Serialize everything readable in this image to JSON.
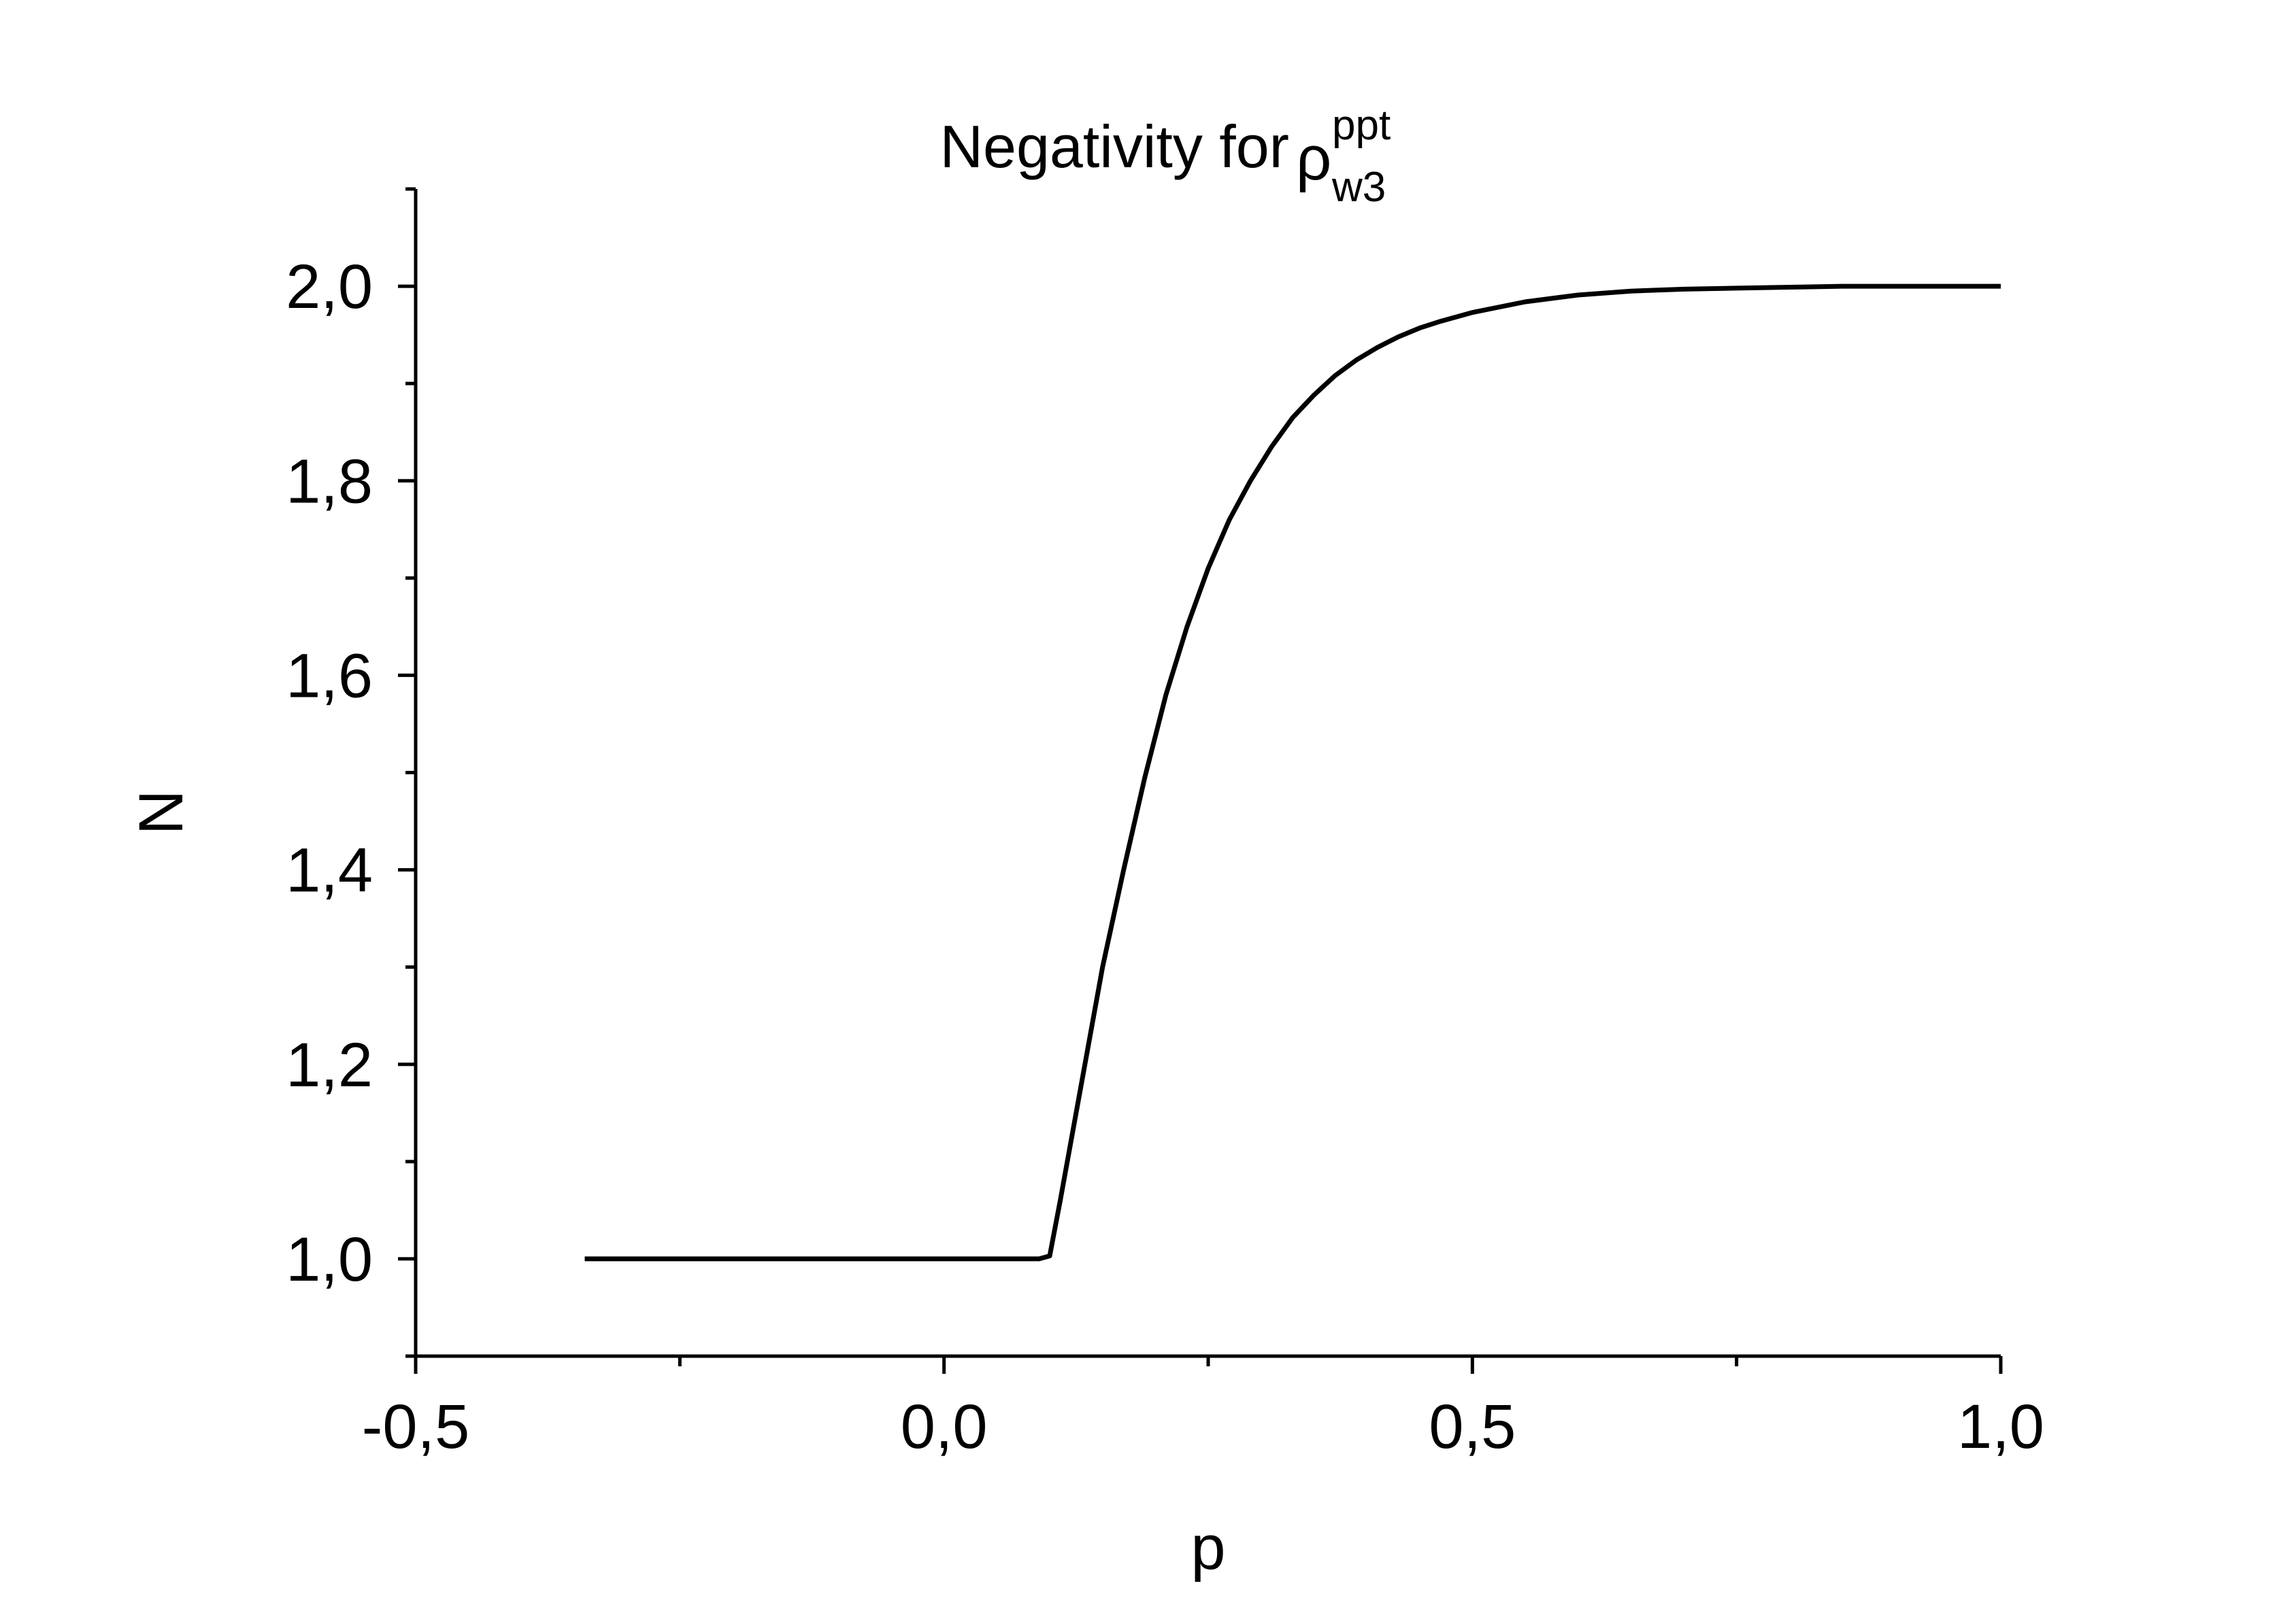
{
  "chart_data": {
    "type": "line",
    "title": {
      "text": "Negativity for ",
      "symbol": "ρ",
      "superscript": "ppt",
      "subscript": "w3"
    },
    "xlabel": "p",
    "ylabel": "N",
    "xlim": [
      -0.5,
      1.0
    ],
    "ylim": [
      0.9,
      2.1
    ],
    "x_ticks": [
      {
        "value": -0.5,
        "label": "-0,5"
      },
      {
        "value": 0.0,
        "label": "0,0"
      },
      {
        "value": 0.5,
        "label": "0,5"
      },
      {
        "value": 1.0,
        "label": "1,0"
      }
    ],
    "x_minor_ticks": [
      -0.25,
      0.25,
      0.75
    ],
    "y_ticks": [
      {
        "value": 1.0,
        "label": "1,0"
      },
      {
        "value": 1.2,
        "label": "1,2"
      },
      {
        "value": 1.4,
        "label": "1,4"
      },
      {
        "value": 1.6,
        "label": "1,6"
      },
      {
        "value": 1.8,
        "label": "1,8"
      },
      {
        "value": 2.0,
        "label": "2,0"
      }
    ],
    "y_minor_ticks": [
      0.9,
      1.1,
      1.3,
      1.5,
      1.7,
      1.9,
      2.1
    ],
    "grid": false,
    "legend": "none",
    "series": [
      {
        "color": "#000000",
        "x": [
          -0.34,
          -0.3,
          -0.2,
          -0.1,
          0.0,
          0.05,
          0.09,
          0.1,
          0.11,
          0.13,
          0.15,
          0.17,
          0.19,
          0.21,
          0.23,
          0.25,
          0.27,
          0.29,
          0.31,
          0.33,
          0.35,
          0.37,
          0.39,
          0.41,
          0.43,
          0.45,
          0.47,
          0.5,
          0.55,
          0.6,
          0.65,
          0.7,
          0.75,
          0.8,
          0.85,
          0.9,
          0.95,
          1.0
        ],
        "y": [
          1.0,
          1.0,
          1.0,
          1.0,
          1.0,
          1.0,
          1.0,
          1.003,
          1.06,
          1.18,
          1.3,
          1.4,
          1.495,
          1.58,
          1.65,
          1.71,
          1.76,
          1.8,
          1.835,
          1.865,
          1.888,
          1.908,
          1.924,
          1.937,
          1.948,
          1.957,
          1.964,
          1.973,
          1.984,
          1.991,
          1.995,
          1.997,
          1.998,
          1.999,
          2.0,
          2.0,
          2.0,
          2.0
        ]
      }
    ]
  }
}
